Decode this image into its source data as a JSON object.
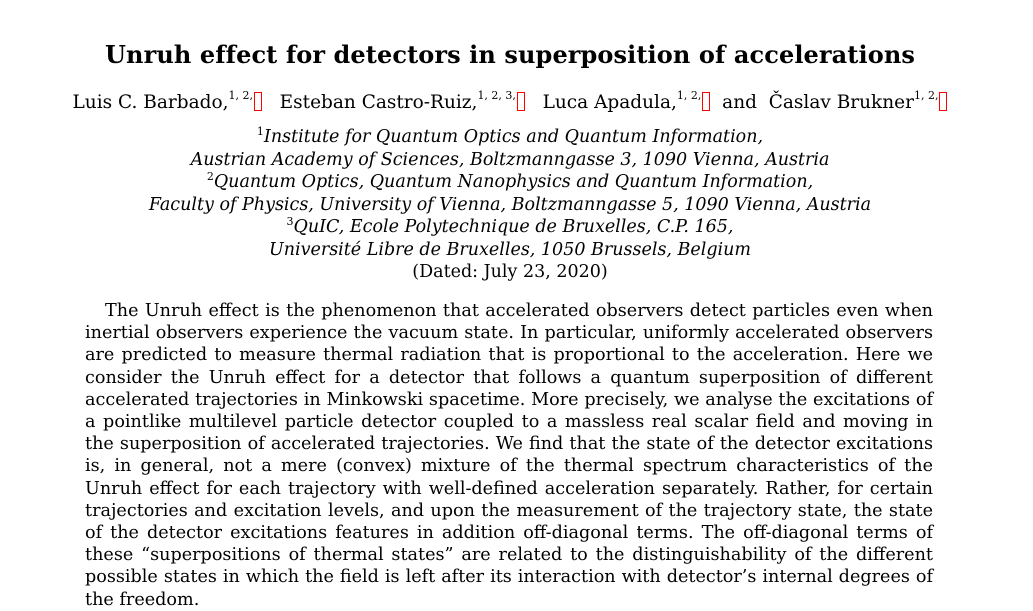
{
  "paper": {
    "title": "Unruh effect for detectors in superposition of accelerations",
    "authors": [
      {
        "name": "Luis C. Barbado,",
        "affils": "1, 2,"
      },
      {
        "name": "Esteban Castro-Ruiz,",
        "affils": "1, 2, 3,"
      },
      {
        "name": "Luca Apadula,",
        "affils": "1, 2,"
      },
      {
        "name": "Časlav Brukner",
        "affils": "1, 2,"
      }
    ],
    "author_and": "and",
    "affiliations": [
      {
        "num": "1",
        "line1": "Institute for Quantum Optics and Quantum Information,",
        "line2": "Austrian Academy of Sciences, Boltzmanngasse 3, 1090 Vienna, Austria"
      },
      {
        "num": "2",
        "line1": "Quantum Optics, Quantum Nanophysics and Quantum Information,",
        "line2": "Faculty of Physics, University of Vienna, Boltzmanngasse 5, 1090 Vienna, Austria"
      },
      {
        "num": "3",
        "line1": "QuIC, Ecole Polytechnique de Bruxelles, C.P. 165,",
        "line2": "Université Libre de Bruxelles, 1050 Brussels, Belgium"
      }
    ],
    "dated": "(Dated: July 23, 2020)",
    "abstract": "The Unruh effect is the phenomenon that accelerated observers detect particles even when inertial observers experience the vacuum state. In particular, uniformly accelerated observers are predicted to measure thermal radiation that is proportional to the acceleration. Here we consider the Unruh effect for a detector that follows a quantum superposition of different accelerated trajectories in Minkowski spacetime. More precisely, we analyse the excitations of a pointlike multilevel particle detector coupled to a massless real scalar field and moving in the superposition of accelerated trajectories. We find that the state of the detector excitations is, in general, not a mere (convex) mixture of the thermal spectrum characteristics of the Unruh effect for each trajectory with well-defined acceleration separately. Rather, for certain trajectories and excitation levels, and upon the measurement of the trajectory state, the state of the detector excitations features in addition off-diagonal terms. The off-diagonal terms of these “superpositions of thermal states” are related to the distinguishability of the different possible states in which the field is left after its interaction with detector’s internal degrees of the freedom.",
    "footnote_link_color": "#ff0000"
  }
}
